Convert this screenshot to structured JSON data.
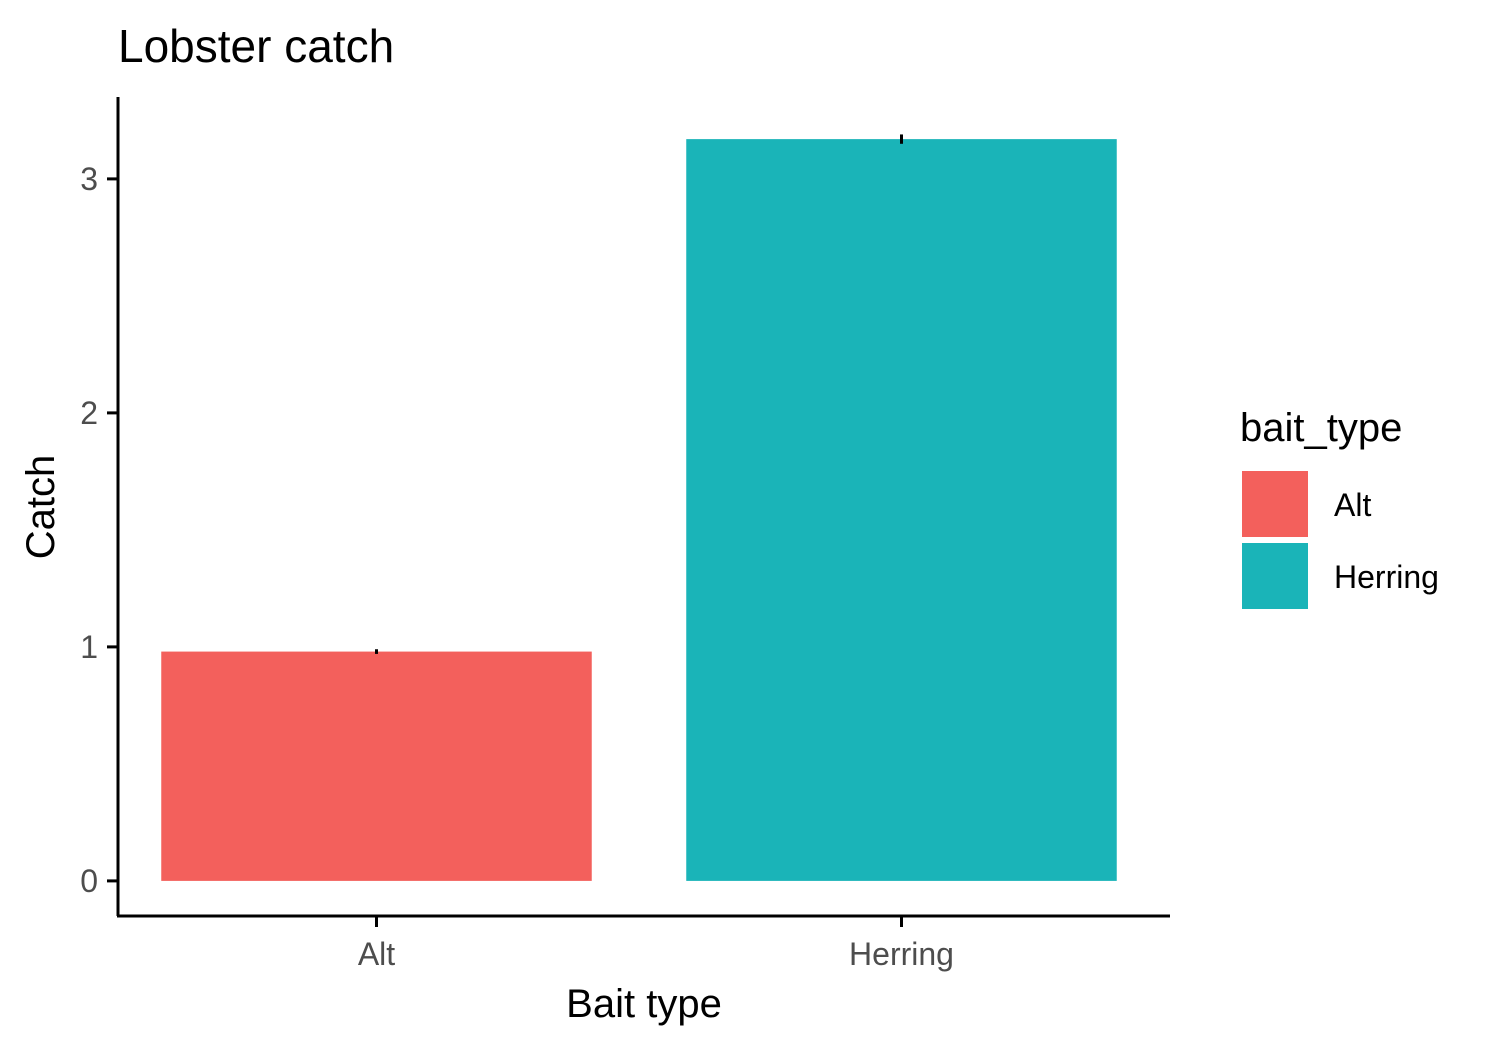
{
  "chart_data": {
    "type": "bar",
    "title": "Lobster catch",
    "xlabel": "Bait type",
    "ylabel": "Catch",
    "categories": [
      "Alt",
      "Herring"
    ],
    "values": [
      0.98,
      3.17
    ],
    "errors": [
      0.01,
      0.02
    ],
    "colors": [
      "#F3605C",
      "#1AB4B8"
    ],
    "ylim": [
      -0.15,
      3.35
    ],
    "yticks": [
      "0",
      "1",
      "2",
      "3"
    ],
    "grid": false,
    "legend": {
      "title": "bait_type",
      "position": "right",
      "entries": [
        "Alt",
        "Herring"
      ]
    }
  }
}
